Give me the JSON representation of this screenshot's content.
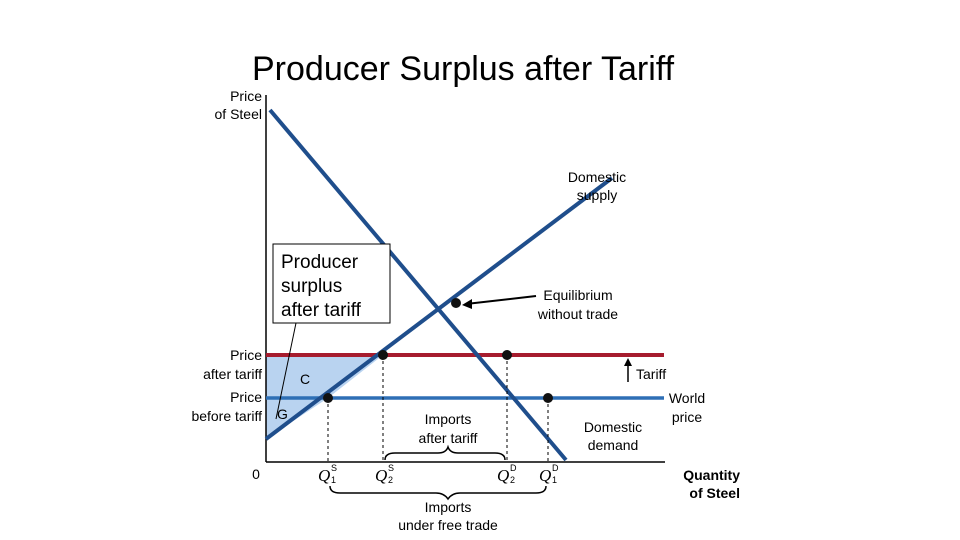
{
  "title": "Producer Surplus after Tariff",
  "axes": {
    "y_label_line1": "Price",
    "y_label_line2": "of Steel",
    "x_label_line1": "Quantity",
    "x_label_line2": "of Steel",
    "origin": "0"
  },
  "prices": {
    "after_tariff_line1": "Price",
    "after_tariff_line2": "after tariff",
    "before_tariff_line1": "Price",
    "before_tariff_line2": "before tariff"
  },
  "curves": {
    "supply_line1": "Domestic",
    "supply_line2": "supply",
    "demand_line1": "Domestic",
    "demand_line2": "demand"
  },
  "annotations": {
    "producer_surplus_line1": "Producer",
    "producer_surplus_line2": "surplus",
    "producer_surplus_line3": "after tariff",
    "equilibrium_line1": "Equilibrium",
    "equilibrium_line2": "without trade",
    "tariff": "Tariff",
    "world_price_line1": "World",
    "world_price_line2": "price",
    "imports_after_line1": "Imports",
    "imports_after_line2": "after tariff",
    "imports_free_line1": "Imports",
    "imports_free_line2": "under free trade",
    "region_c": "C",
    "region_g": "G"
  },
  "quantities": [
    {
      "base": "Q",
      "sup": "S",
      "sub": "1"
    },
    {
      "base": "Q",
      "sup": "S",
      "sub": "2"
    },
    {
      "base": "Q",
      "sup": "D",
      "sub": "2"
    },
    {
      "base": "Q",
      "sup": "D",
      "sub": "1"
    }
  ],
  "colors": {
    "curve": "#1f4e8c",
    "tariff_line": "#a61c2e",
    "world_price_line": "#2e6fb5",
    "surplus_fill": "#b9d3f0"
  }
}
